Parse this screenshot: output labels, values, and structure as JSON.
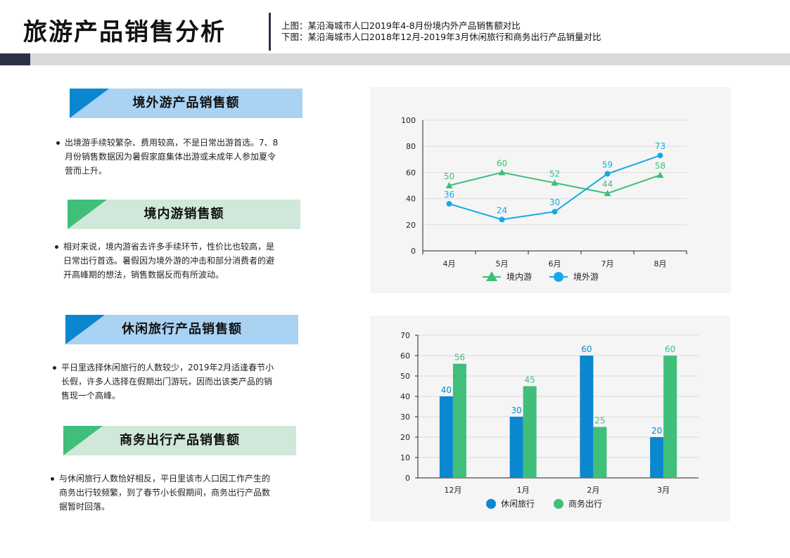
{
  "header": {
    "title": "旅游产品销售分析",
    "subtitle_top": "上图：某沿海城市人口2019年4-8月份境内外产品销售额对比",
    "subtitle_bottom": "下图：某沿海城市人口2018年12月-2019年3月休闲旅行和商务出行产品销量对比"
  },
  "sections": [
    {
      "title": "境外游产品销售额",
      "text": "出境游手续较繁杂、费用较高，不是日常出游首选。7、8月份销售数据因为暑假家庭集体出游或未成年人参加夏令营而上升。"
    },
    {
      "title": "境内游销售额",
      "text": "相对来说，境内游省去许多手续环节，性价比也较高，是日常出行首选。暑假因为境外游的冲击和部分消费者的避开高峰期的想法，销售数据反而有所波动。"
    },
    {
      "title": "休闲旅行产品销售额",
      "text": "平日里选择休闲旅行的人数较少，2019年2月适逢春节小长假，许多人选择在假期出门游玩，因而出该类产品的销售现一个高峰。"
    },
    {
      "title": "商务出行产品销售额",
      "text": "与休闲旅行人数恰好相反，平日里该市人口因工作产生的商务出行较频繁，到了春节小长假期间，商务出行产品数据暂时回落。"
    }
  ],
  "colors": {
    "blue": "#0a87cf",
    "sky": "#14a9e6",
    "green": "#3fbf7a",
    "blue_head": "#a9d2f3",
    "green_head": "#cfe8d9",
    "dark": "#2b3245"
  },
  "chart_data": [
    {
      "type": "line",
      "categories": [
        "4月",
        "5月",
        "6月",
        "7月",
        "8月"
      ],
      "series": [
        {
          "name": "境内游",
          "values": [
            50,
            60,
            52,
            44,
            58
          ],
          "color": "#3fbf7a",
          "marker": "triangle"
        },
        {
          "name": "境外游",
          "values": [
            36,
            24,
            30,
            59,
            73
          ],
          "color": "#14a9e6",
          "marker": "circle"
        }
      ],
      "yticks": [
        0,
        20,
        40,
        60,
        80,
        100
      ],
      "ylim": [
        0,
        100
      ],
      "legend": "bottom"
    },
    {
      "type": "bar",
      "categories": [
        "12月",
        "1月",
        "2月",
        "3月"
      ],
      "series": [
        {
          "name": "休闲旅行",
          "values": [
            40,
            30,
            60,
            20
          ],
          "color": "#0a87cf"
        },
        {
          "name": "商务出行",
          "values": [
            56,
            45,
            25,
            60
          ],
          "color": "#3fbf7a"
        }
      ],
      "yticks": [
        0,
        10,
        20,
        30,
        40,
        50,
        60,
        70
      ],
      "ylim": [
        0,
        70
      ],
      "legend": "bottom"
    }
  ]
}
